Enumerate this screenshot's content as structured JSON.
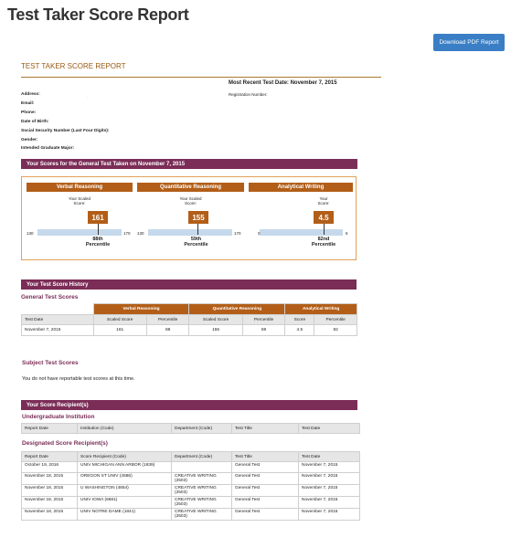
{
  "page": {
    "title": "Test Taker Score Report",
    "download_label": "Download PDF Report"
  },
  "report": {
    "heading": "TEST TAKER SCORE REPORT",
    "most_recent": "Most Recent Test Date: November 7, 2015",
    "registration": "Registration Number:",
    "fields": [
      "Address:",
      "Email:",
      "Phone:",
      "Date of Birth:",
      "Social Security Number (Last Four Digits):",
      "Gender:",
      "Intended Graduate Major:"
    ],
    "address_value": "."
  },
  "general": {
    "bar": "Your Scores for the General Test Taken on November 7, 2015",
    "panels": [
      {
        "name": "Verbal Reasoning",
        "scaled_label_1": "Your Scaled",
        "scaled_label_2": "Score:",
        "score": "161",
        "min": "130",
        "max": "170",
        "percentile": "88th",
        "percentile_label": "Percentile"
      },
      {
        "name": "Quantitative Reasoning",
        "scaled_label_1": "Your Scaled",
        "scaled_label_2": "Score:",
        "score": "155",
        "min": "130",
        "max": "170",
        "percentile": "59th",
        "percentile_label": "Percentile"
      },
      {
        "name": "Analytical Writing",
        "scaled_label_1": "Your",
        "scaled_label_2": "Score:",
        "score": "4.5",
        "min": "0",
        "max": "6",
        "percentile": "82nd",
        "percentile_label": "Percentile"
      }
    ]
  },
  "history": {
    "bar": "Your Test Score History",
    "subtitle": "General Test Scores",
    "groups": [
      "Verbal Reasoning",
      "Quantitative Reasoning",
      "Analytical Writing"
    ],
    "columns": [
      "Test Date",
      "Scaled Score",
      "Percentile",
      "Scaled Score",
      "Percentile",
      "Score",
      "Percentile"
    ],
    "rows": [
      [
        "November 7, 2015",
        "161",
        "88",
        "155",
        "59",
        "4.5",
        "82"
      ]
    ]
  },
  "subject": {
    "title": "Subject Test Scores",
    "message": "You do not have reportable test scores at this time."
  },
  "recipients": {
    "bar": "Your Score Recipient(s)",
    "undergrad_title": "Undergraduate Institution",
    "undergrad_columns": [
      "Report Date",
      "Institution (Code)",
      "Department (Code)",
      "Test Title",
      "Test Date"
    ],
    "designated_title": "Designated Score Recipient(s)",
    "designated_columns": [
      "Report Date",
      "Score Recipient (Code)",
      "Department (Code)",
      "Test Title",
      "Test Date"
    ],
    "rows": [
      [
        "October 19, 2016",
        "UNIV MICHIGAN ANN ARBOR (1839)",
        "",
        "General Test",
        "November 7, 2015"
      ],
      [
        "November 18, 2015",
        "OREGON ST UNIV (4586)",
        "CREATIVE WRITING (2503)",
        "General Test",
        "November 7, 2015"
      ],
      [
        "November 18, 2015",
        "U WASHINGTON (4854)",
        "CREATIVE WRITING (2503)",
        "General Test",
        "November 7, 2015"
      ],
      [
        "November 18, 2015",
        "UNIV IOWA (6681)",
        "CREATIVE WRITING (2503)",
        "General Test",
        "November 7, 2015"
      ],
      [
        "November 18, 2015",
        "UNIV NOTRE DAME (1841)",
        "CREATIVE WRITING (2503)",
        "General Test",
        "November 7, 2015"
      ]
    ]
  },
  "colors": {
    "accent": "#b25e18",
    "section_bar": "#7b2d57",
    "button": "#3a7fc5",
    "scale": "#c6d9ec"
  }
}
